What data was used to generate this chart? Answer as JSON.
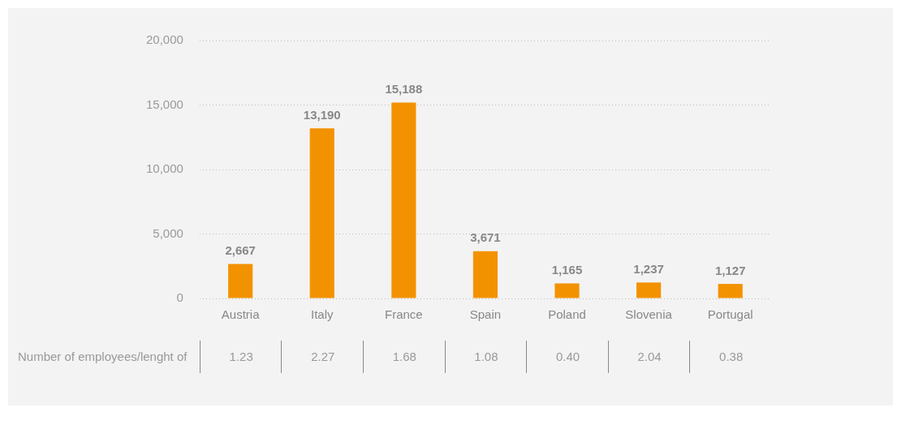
{
  "chart_data": {
    "type": "bar",
    "categories": [
      "Austria",
      "Italy",
      "France",
      "Spain",
      "Poland",
      "Slovenia",
      "Portugal"
    ],
    "values": [
      2667,
      13190,
      15188,
      3671,
      1165,
      1237,
      1127
    ],
    "value_labels": [
      "2,667",
      "13,190",
      "15,188",
      "3,671",
      "1,165",
      "1,237",
      "1,127"
    ],
    "color": "#f39200",
    "ylim": [
      0,
      20000
    ],
    "yticks": [
      {
        "value": 0,
        "label": "0"
      },
      {
        "value": 5000,
        "label": "5,000"
      },
      {
        "value": 10000,
        "label": "10,000"
      },
      {
        "value": 15000,
        "label": "15,000"
      },
      {
        "value": 20000,
        "label": "20,000"
      }
    ],
    "grid": "y",
    "annotations": [
      "Number of employees/lenght of",
      "1.23",
      "2.27",
      "1.68",
      "1.08",
      "0.40",
      "2.04",
      "0.38"
    ]
  }
}
